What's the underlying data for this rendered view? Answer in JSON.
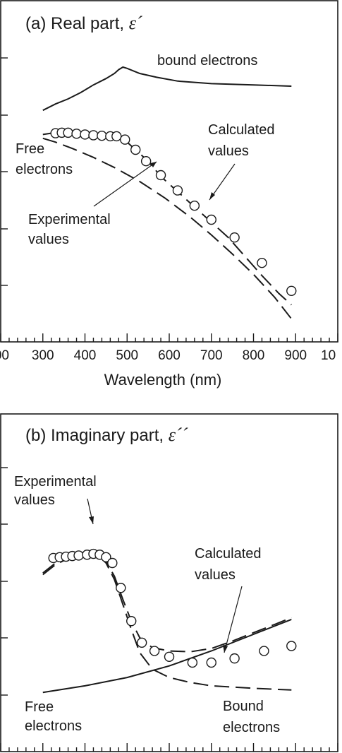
{
  "chart_data": [
    {
      "type": "line",
      "panel_label": "(a)",
      "title": "Real part, ",
      "title_symbol": "ε´",
      "xlabel": "Wavelength (nm)",
      "xlim": [
        200,
        1000
      ],
      "x_tick_labels": [
        "00",
        "300",
        "400",
        "500",
        "600",
        "700",
        "800",
        "900",
        "10"
      ],
      "y_ticks_labeled": false,
      "series": [
        {
          "name": "bound electrons",
          "style": "solid",
          "x": [
            300,
            330,
            360,
            390,
            420,
            450,
            470,
            480,
            490,
            500,
            530,
            570,
            620,
            700,
            800,
            890
          ],
          "y": [
            0.83,
            0.855,
            0.875,
            0.9,
            0.93,
            0.955,
            0.975,
            0.99,
            1.0,
            0.995,
            0.975,
            0.96,
            0.945,
            0.935,
            0.93,
            0.925
          ]
        },
        {
          "name": "Free electrons",
          "style": "dashed",
          "x": [
            300,
            330,
            370,
            420,
            470,
            530,
            590,
            650,
            700,
            750,
            800,
            850,
            890
          ],
          "y": [
            0.72,
            0.705,
            0.68,
            0.645,
            0.605,
            0.55,
            0.485,
            0.41,
            0.34,
            0.265,
            0.185,
            0.095,
            0.01
          ]
        },
        {
          "name": "Calculated values",
          "style": "dashed",
          "x": [
            300,
            340,
            380,
            420,
            460,
            490,
            520,
            550,
            580,
            620,
            660,
            700,
            740,
            780,
            820,
            860,
            890
          ],
          "y": [
            0.735,
            0.745,
            0.745,
            0.74,
            0.735,
            0.72,
            0.675,
            0.63,
            0.57,
            0.51,
            0.45,
            0.39,
            0.33,
            0.255,
            0.18,
            0.11,
            0.065
          ]
        },
        {
          "name": "Experimental values",
          "style": "markers",
          "x": [
            330,
            345,
            360,
            380,
            400,
            420,
            440,
            460,
            475,
            495,
            520,
            545,
            580,
            620,
            660,
            700,
            755,
            820,
            890
          ],
          "y": [
            0.74,
            0.742,
            0.742,
            0.738,
            0.735,
            0.732,
            0.73,
            0.728,
            0.728,
            0.715,
            0.675,
            0.63,
            0.575,
            0.515,
            0.455,
            0.4,
            0.33,
            0.23,
            0.12
          ]
        }
      ],
      "annotations": [
        "bound electrons",
        "Free electrons",
        "Calculated values",
        "Experimental values"
      ]
    },
    {
      "type": "line",
      "panel_label": "(b)",
      "title": "Imaginary part, ",
      "title_symbol": "ε´´",
      "xlim": [
        200,
        1000
      ],
      "y_ticks_labeled": false,
      "series": [
        {
          "name": "Free electrons",
          "style": "solid",
          "x": [
            300,
            400,
            500,
            600,
            700,
            800,
            890
          ],
          "y": [
            0.02,
            0.06,
            0.11,
            0.18,
            0.27,
            0.37,
            0.46
          ]
        },
        {
          "name": "Bound electrons",
          "style": "dashed",
          "x": [
            300,
            330,
            370,
            410,
            430,
            450,
            470,
            490,
            510,
            530,
            560,
            600,
            650,
            700,
            800,
            890
          ],
          "y": [
            0.73,
            0.79,
            0.84,
            0.86,
            0.85,
            0.8,
            0.7,
            0.55,
            0.4,
            0.26,
            0.16,
            0.11,
            0.08,
            0.06,
            0.045,
            0.035
          ]
        },
        {
          "name": "Calculated values",
          "style": "dashed",
          "x": [
            300,
            330,
            370,
            410,
            430,
            450,
            470,
            490,
            510,
            530,
            560,
            600,
            650,
            700,
            750,
            800,
            850,
            890
          ],
          "y": [
            0.74,
            0.8,
            0.85,
            0.87,
            0.86,
            0.81,
            0.72,
            0.58,
            0.45,
            0.35,
            0.29,
            0.27,
            0.265,
            0.285,
            0.33,
            0.38,
            0.43,
            0.47
          ]
        },
        {
          "name": "Experimental values",
          "style": "markers",
          "x": [
            325,
            340,
            355,
            370,
            385,
            405,
            420,
            435,
            450,
            465,
            485,
            510,
            535,
            565,
            600,
            655,
            700,
            755,
            825,
            890
          ],
          "y": [
            0.83,
            0.835,
            0.838,
            0.842,
            0.845,
            0.85,
            0.855,
            0.85,
            0.835,
            0.8,
            0.65,
            0.45,
            0.32,
            0.27,
            0.235,
            0.2,
            0.2,
            0.225,
            0.27,
            0.3
          ]
        }
      ],
      "annotations": [
        "Experimental values",
        "Calculated values",
        "Free electrons",
        "Bound electrons"
      ]
    }
  ],
  "annotations_text": {
    "a_bound": "bound electrons",
    "a_free_1": "Free",
    "a_free_2": "electrons",
    "a_calc_1": "Calculated",
    "a_calc_2": "values",
    "a_exp_1": "Experimental",
    "a_exp_2": "values",
    "b_exp_1": "Experimental",
    "b_exp_2": "values",
    "b_calc_1": "Calculated",
    "b_calc_2": "values",
    "b_free_1": "Free",
    "b_free_2": "electrons",
    "b_bound_1": "Bound",
    "b_bound_2": "electrons"
  }
}
